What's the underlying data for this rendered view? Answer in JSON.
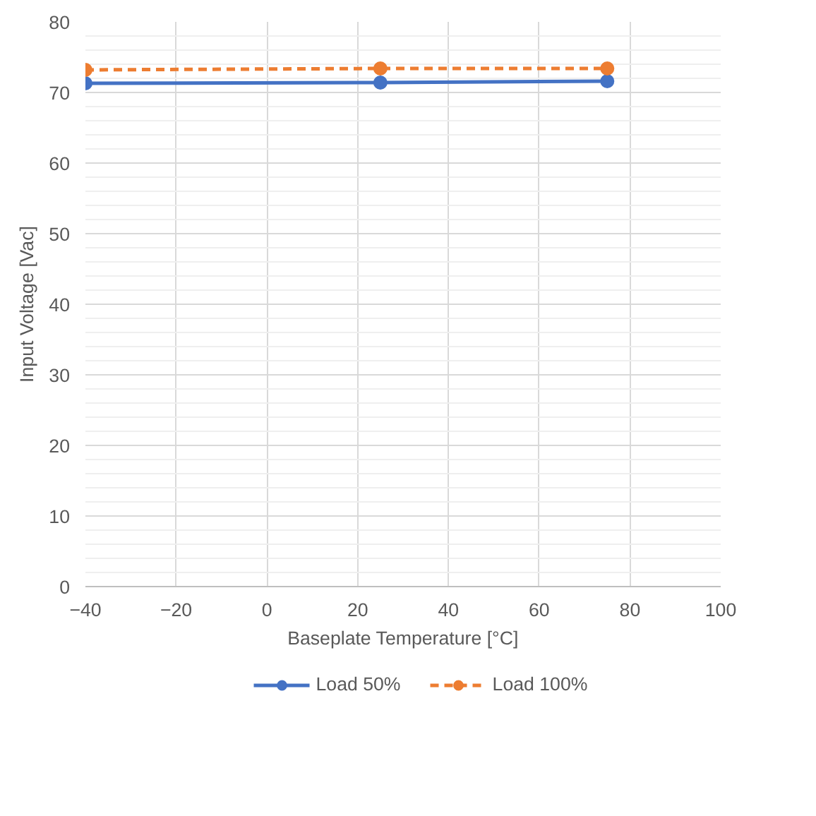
{
  "chart_data": {
    "type": "line",
    "xlabel": "Baseplate Temperature [°C]",
    "ylabel": "Input Voltage [Vac]",
    "xlim": [
      -40,
      100
    ],
    "xticks": [
      -40,
      -20,
      0,
      20,
      40,
      60,
      80,
      100
    ],
    "ylim": [
      0,
      80
    ],
    "yticks": [
      0,
      10,
      20,
      30,
      40,
      50,
      60,
      70,
      80
    ],
    "grid": true,
    "legend": "bottom",
    "marker": "circle",
    "series": [
      {
        "name": "Load 50%",
        "color": "#4472c4",
        "line_style": "solid",
        "x": [
          -40,
          25,
          75
        ],
        "values": [
          71.3,
          71.4,
          71.6
        ]
      },
      {
        "name": "Load 100%",
        "color": "#ed7d31",
        "line_style": "dashed",
        "x": [
          -40,
          25,
          75
        ],
        "values": [
          73.2,
          73.4,
          73.4
        ]
      }
    ]
  }
}
